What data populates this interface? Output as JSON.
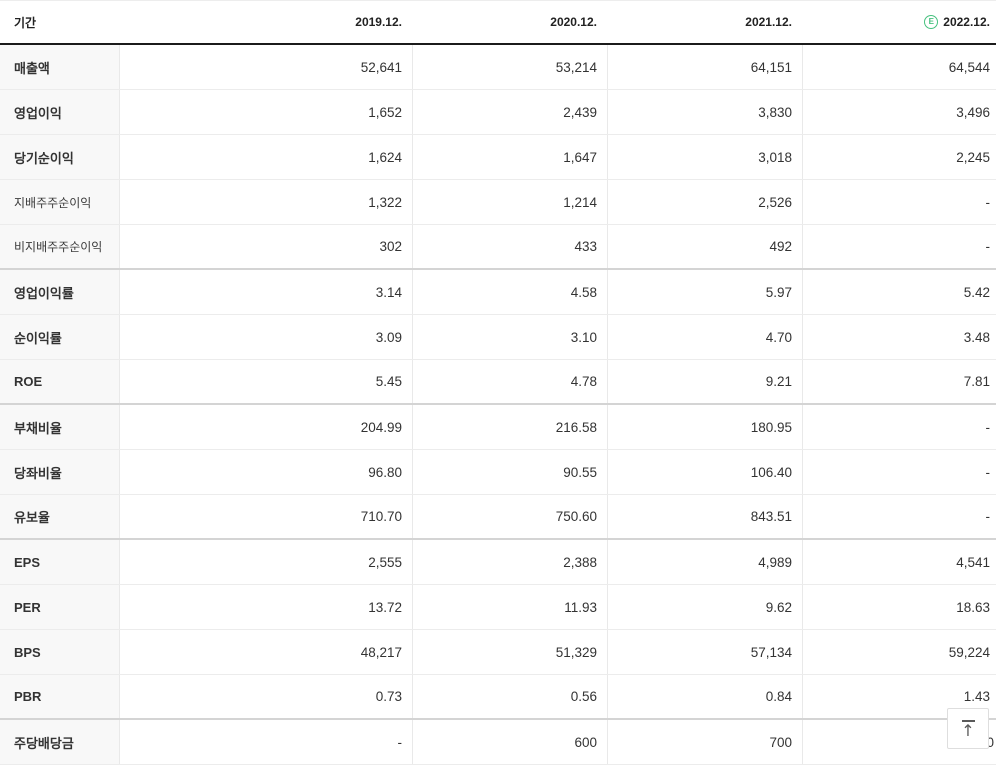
{
  "table": {
    "header": {
      "period_label": "기간",
      "columns": [
        "2019.12.",
        "2020.12.",
        "2021.12.",
        "2022.12."
      ],
      "estimate_badge": "E"
    },
    "rows": [
      {
        "label": "매출액",
        "values": [
          "52,641",
          "53,214",
          "64,151",
          "64,544"
        ]
      },
      {
        "label": "영업이익",
        "values": [
          "1,652",
          "2,439",
          "3,830",
          "3,496"
        ]
      },
      {
        "label": "당기순이익",
        "values": [
          "1,624",
          "1,647",
          "3,018",
          "2,245"
        ]
      },
      {
        "label": "지배주주순이익",
        "values": [
          "1,322",
          "1,214",
          "2,526",
          "-"
        ]
      },
      {
        "label": "비지배주주순이익",
        "values": [
          "302",
          "433",
          "492",
          "-"
        ]
      },
      {
        "label": "영업이익률",
        "values": [
          "3.14",
          "4.58",
          "5.97",
          "5.42"
        ]
      },
      {
        "label": "순이익률",
        "values": [
          "3.09",
          "3.10",
          "4.70",
          "3.48"
        ]
      },
      {
        "label": "ROE",
        "values": [
          "5.45",
          "4.78",
          "9.21",
          "7.81"
        ]
      },
      {
        "label": "부채비율",
        "values": [
          "204.99",
          "216.58",
          "180.95",
          "-"
        ]
      },
      {
        "label": "당좌비율",
        "values": [
          "96.80",
          "90.55",
          "106.40",
          "-"
        ]
      },
      {
        "label": "유보율",
        "values": [
          "710.70",
          "750.60",
          "843.51",
          "-"
        ]
      },
      {
        "label": "EPS",
        "values": [
          "2,555",
          "2,388",
          "4,989",
          "4,541"
        ]
      },
      {
        "label": "PER",
        "values": [
          "13.72",
          "11.93",
          "9.62",
          "18.63"
        ]
      },
      {
        "label": "BPS",
        "values": [
          "48,217",
          "51,329",
          "57,134",
          "59,224"
        ]
      },
      {
        "label": "PBR",
        "values": [
          "0.73",
          "0.56",
          "0.84",
          "1.43"
        ]
      },
      {
        "label": "주당배당금",
        "values": [
          "-",
          "600",
          "700",
          "0"
        ]
      }
    ]
  },
  "colors": {
    "estimate_green": "#47c17f",
    "header_border": "#1b1b1b",
    "label_bg": "#f8f8f8"
  }
}
